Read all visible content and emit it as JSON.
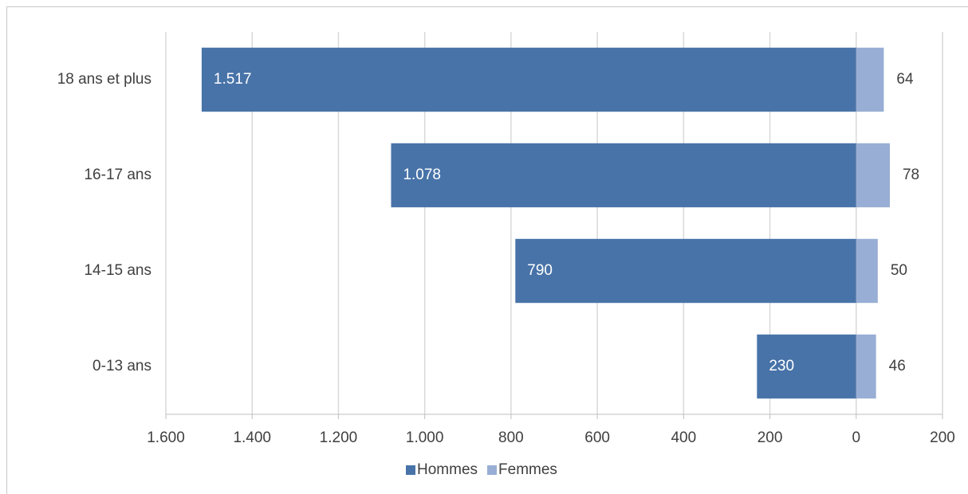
{
  "chart_data": {
    "type": "bar",
    "orientation": "horizontal",
    "stacked": false,
    "categories": [
      "18 ans et plus",
      "16-17 ans",
      "14-15 ans",
      "0-13 ans"
    ],
    "series": [
      {
        "name": "Hommes",
        "color": "#4873a8",
        "values": [
          -1517,
          -1078,
          -790,
          -230
        ],
        "value_labels": [
          "1.517",
          "1.078",
          "790",
          "230"
        ]
      },
      {
        "name": "Femmes",
        "color": "#98aed4",
        "values": [
          64,
          78,
          50,
          46
        ]
      }
    ],
    "xlim": [
      -1600,
      200
    ],
    "xticks": [
      {
        "value": -1600,
        "label": "1.600"
      },
      {
        "value": -1400,
        "label": "1.400"
      },
      {
        "value": -1200,
        "label": "1.200"
      },
      {
        "value": -1000,
        "label": "1.000"
      },
      {
        "value": -800,
        "label": "800"
      },
      {
        "value": -600,
        "label": "600"
      },
      {
        "value": -400,
        "label": "400"
      },
      {
        "value": -200,
        "label": "200"
      },
      0,
      200
    ],
    "grid": true,
    "legend": "bottom"
  }
}
